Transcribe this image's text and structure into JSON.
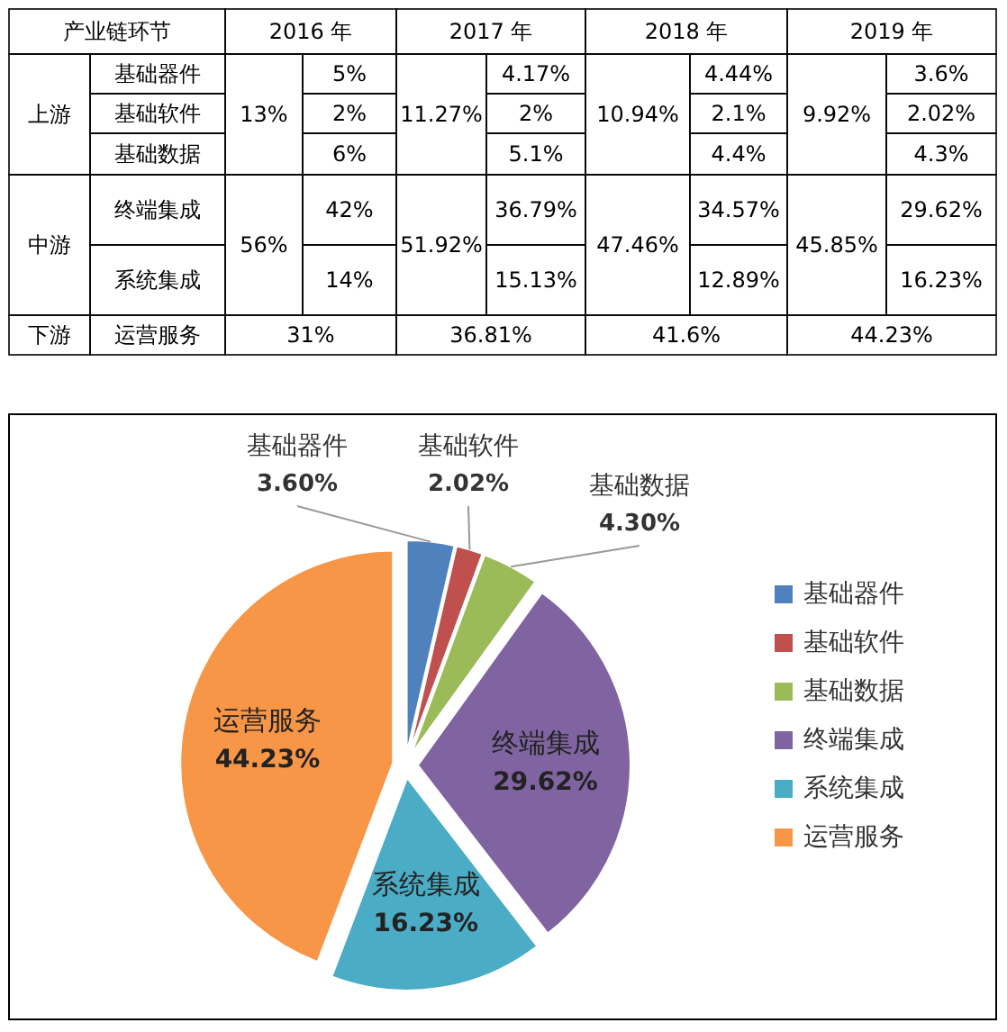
{
  "chart_data": [
    {
      "type": "other",
      "annotations": [
        "产业链环节",
        "2016 年",
        "2017 年",
        "2018 年",
        "2019 年",
        "上游",
        "基础器件",
        "基础软件",
        "基础数据",
        "13%",
        "5%",
        "2%",
        "6%",
        "11.27%",
        "4.17%",
        "2%",
        "5.1%",
        "10.94%",
        "4.44%",
        "2.1%",
        "4.4%",
        "9.92%",
        "3.6%",
        "2.02%",
        "4.3%",
        "中游",
        "终端集成",
        "系统集成",
        "56%",
        "42%",
        "14%",
        "51.92%",
        "36.79%",
        "15.13%",
        "47.46%",
        "34.57%",
        "12.89%",
        "45.85%",
        "29.62%",
        "16.23%",
        "下游",
        "运营服务",
        "31%",
        "36.81%",
        "41.6%",
        "44.23%"
      ]
    },
    {
      "type": "pie",
      "categories": [
        "基础器件",
        "基础软件",
        "基础数据",
        "终端集成",
        "系统集成",
        "运营服务"
      ],
      "values": [
        3.6,
        2.02,
        4.3,
        29.62,
        16.23,
        44.23
      ],
      "value_labels": [
        "3.60%",
        "2.02%",
        "4.30%",
        "29.62%",
        "16.23%",
        "44.23%"
      ],
      "colors": [
        "#4f81bd",
        "#c0504d",
        "#9bbb59",
        "#8064a2",
        "#4bacc6",
        "#f79646"
      ],
      "legend": "right"
    }
  ]
}
